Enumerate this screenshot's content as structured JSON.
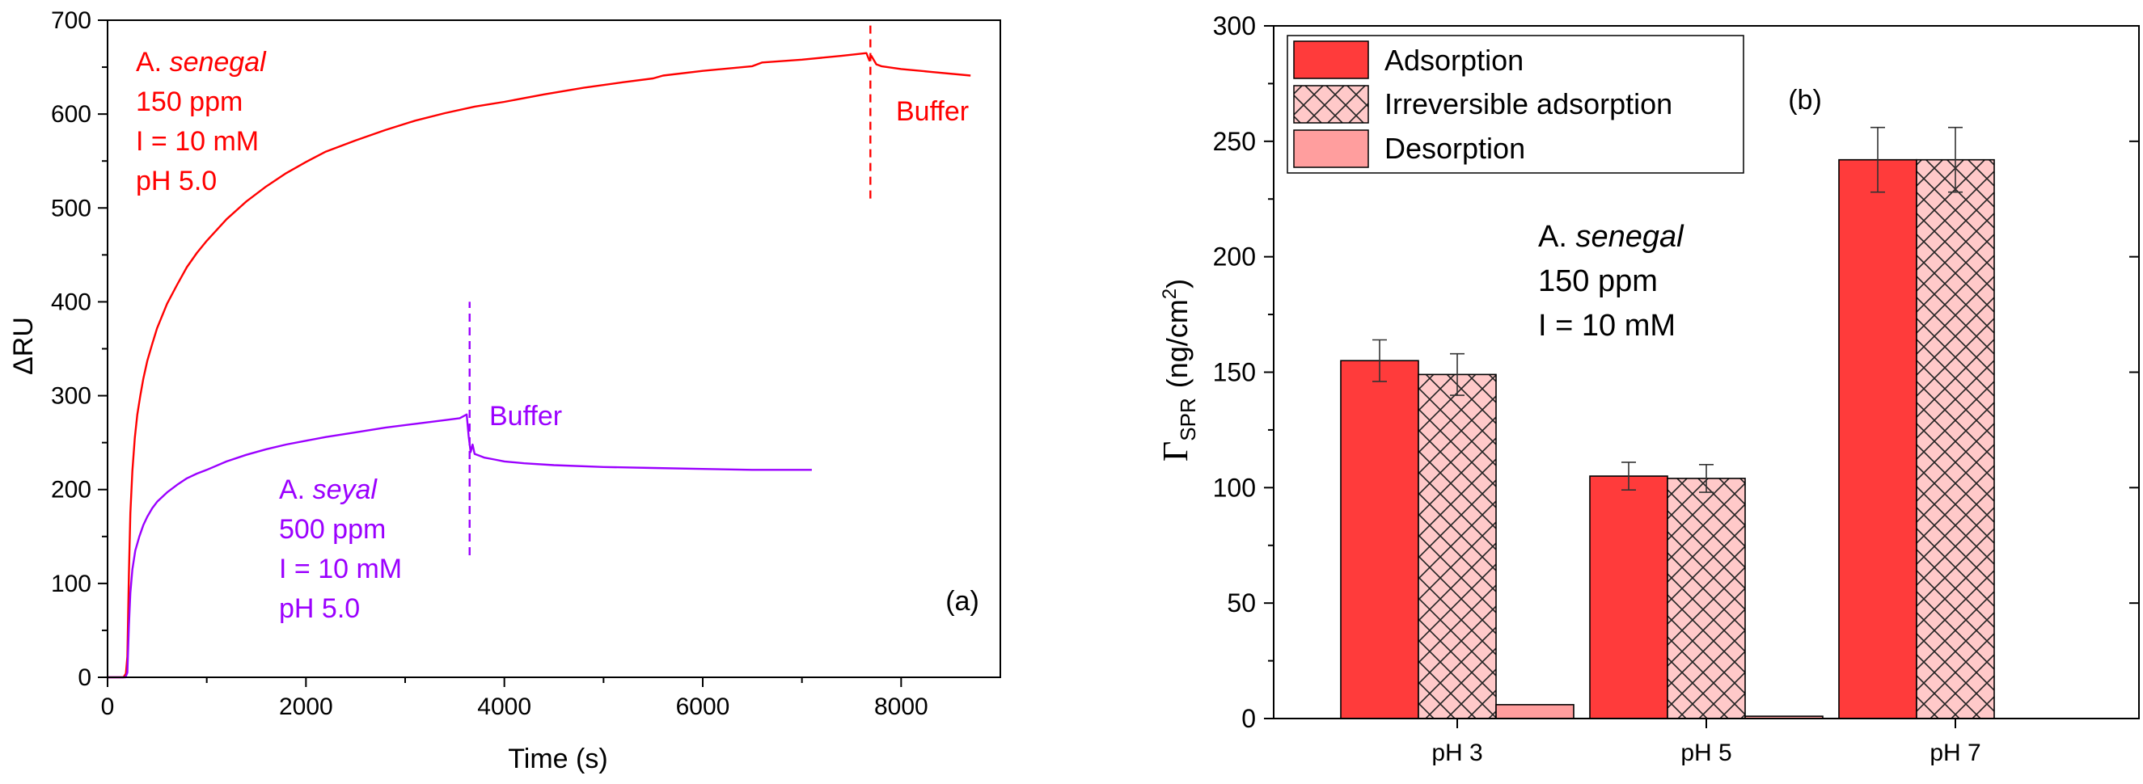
{
  "chart_data": [
    {
      "type": "line",
      "panel_label": "(a)",
      "xlabel": "Time (s)",
      "ylabel": "ΔRU",
      "xlim": [
        0,
        9000
      ],
      "ylim": [
        0,
        700
      ],
      "x_major_ticks": [
        0,
        2000,
        4000,
        6000,
        8000
      ],
      "y_major_ticks": [
        0,
        100,
        200,
        300,
        400,
        500,
        600,
        700
      ],
      "series": [
        {
          "name": "A. senegal 150 ppm",
          "color": "#ff0000",
          "x": [
            0,
            120,
            160,
            185,
            200,
            215,
            230,
            250,
            275,
            300,
            330,
            360,
            400,
            450,
            500,
            600,
            700,
            800,
            900,
            1000,
            1200,
            1400,
            1600,
            1800,
            2000,
            2200,
            2500,
            2800,
            3100,
            3400,
            3700,
            4000,
            4400,
            4800,
            5200,
            5500,
            5600,
            6000,
            6500,
            6600,
            7000,
            7400,
            7650,
            7680,
            7700,
            7750,
            7800,
            8000,
            8300,
            8700
          ],
          "y": [
            0,
            0,
            0,
            4,
            22,
            110,
            175,
            220,
            255,
            280,
            300,
            318,
            337,
            355,
            372,
            398,
            418,
            437,
            452,
            465,
            488,
            507,
            523,
            537,
            549,
            560,
            572,
            583,
            593,
            601,
            608,
            613,
            621,
            628,
            634,
            638,
            641,
            646,
            651,
            655,
            658,
            662,
            665,
            657,
            662,
            653,
            651,
            648,
            645,
            641
          ]
        },
        {
          "name": "A. seyal 500 ppm",
          "color": "#9b00ff",
          "x": [
            0,
            90,
            130,
            180,
            200,
            215,
            230,
            250,
            280,
            320,
            360,
            400,
            450,
            500,
            600,
            700,
            800,
            900,
            1000,
            1200,
            1400,
            1600,
            1800,
            2000,
            2200,
            2500,
            2800,
            3100,
            3400,
            3550,
            3620,
            3640,
            3660,
            3680,
            3700,
            3750,
            3800,
            3900,
            4000,
            4200,
            4500,
            5000,
            5500,
            6000,
            6500,
            7100
          ],
          "y": [
            0,
            0,
            0,
            0,
            5,
            55,
            90,
            115,
            135,
            150,
            162,
            171,
            180,
            187,
            197,
            205,
            212,
            217,
            221,
            230,
            237,
            243,
            248,
            252,
            256,
            261,
            266,
            270,
            274,
            276,
            280,
            257,
            240,
            248,
            238,
            236,
            234,
            232,
            230,
            228,
            226,
            224,
            223,
            222,
            221,
            221
          ]
        }
      ],
      "vlines": [
        {
          "x": 3650,
          "color": "#9b00ff",
          "y_range": [
            130,
            400
          ]
        },
        {
          "x": 7690,
          "color": "#ff0000",
          "y_range": [
            510,
            700
          ]
        }
      ],
      "annotations": [
        {
          "lines": [
            "A. senegal",
            "150 ppm",
            "I = 10 mM",
            "pH 5.0"
          ],
          "italic_word": "senegal",
          "color": "#ff0000"
        },
        {
          "lines": [
            "A. seyal",
            "500 ppm",
            "I = 10 mM",
            "pH 5.0"
          ],
          "italic_word": "seyal",
          "color": "#9b00ff"
        },
        {
          "text": "Buffer",
          "color": "#ff0000"
        },
        {
          "text": "Buffer",
          "color": "#9b00ff"
        }
      ]
    },
    {
      "type": "bar",
      "panel_label": "(b)",
      "xlabel": "",
      "ylabel": "Γ",
      "ylabel_sub": "SPR",
      "ylabel_unit": "(ng/cm",
      "ylabel_unit_sup": "2",
      "ylabel_unit_end": ")",
      "ylim": [
        0,
        300
      ],
      "y_major_ticks": [
        0,
        50,
        100,
        150,
        200,
        250,
        300
      ],
      "categories": [
        "pH 3",
        "pH 5",
        "pH 7"
      ],
      "series": [
        {
          "name": "Adsorption",
          "values": [
            155,
            105,
            242
          ],
          "errors": [
            9,
            6,
            14
          ],
          "color": "#ff3b3b",
          "pattern": "solid"
        },
        {
          "name": "Irreversible adsorption",
          "values": [
            149,
            104,
            242
          ],
          "errors": [
            9,
            6,
            14
          ],
          "color": "#ffc9c9",
          "pattern": "crosshatch"
        },
        {
          "name": "Desorption",
          "values": [
            6,
            1,
            0
          ],
          "errors": [
            0,
            0,
            0
          ],
          "color": "#ff9e9e",
          "pattern": "solid"
        }
      ],
      "annotation": {
        "lines": [
          "A. senegal",
          "150 ppm",
          "I = 10 mM"
        ],
        "italic_word": "senegal"
      },
      "legend_position": "top-left"
    }
  ]
}
